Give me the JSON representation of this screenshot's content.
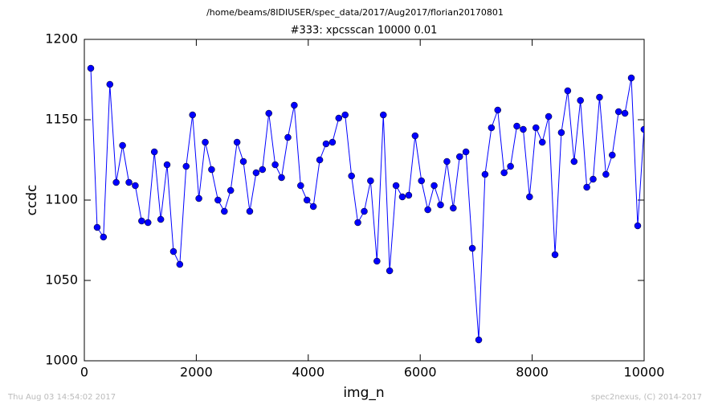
{
  "chart_data": {
    "type": "line",
    "suptitle": "/home/beams/8IDIUSER/spec_data/2017/Aug2017/florian20170801",
    "title": "#333: xpcsscan 10000 0.01",
    "xlabel": "img_n",
    "ylabel": "ccdc",
    "footer_left": "Thu Aug 03 14:54:02 2017",
    "footer_right": "spec2nexus, (C) 2014-2017",
    "x": [
      115,
      229,
      342,
      456,
      569,
      683,
      797,
      910,
      1024,
      1137,
      1251,
      1365,
      1478,
      1592,
      1705,
      1819,
      1933,
      2046,
      2160,
      2273,
      2387,
      2501,
      2614,
      2728,
      2841,
      2955,
      3069,
      3182,
      3296,
      3409,
      3523,
      3637,
      3750,
      3864,
      3977,
      4091,
      4205,
      4318,
      4432,
      4545,
      4659,
      4773,
      4886,
      5000,
      5113,
      5227,
      5341,
      5454,
      5568,
      5681,
      5795,
      5909,
      6022,
      6136,
      6249,
      6363,
      6477,
      6590,
      6704,
      6817,
      6931,
      7045,
      7158,
      7272,
      7385,
      7499,
      7613,
      7726,
      7840,
      7953,
      8067,
      8181,
      8294,
      8408,
      8521,
      8635,
      8749,
      8862,
      8976,
      9089,
      9203,
      9317,
      9430,
      9544,
      9657,
      9771,
      9885,
      9998
    ],
    "series": [
      {
        "color": "#0000ff",
        "values": [
          1182,
          1083,
          1077,
          1172,
          1111,
          1134,
          1111,
          1109,
          1087,
          1086,
          1130,
          1088,
          1122,
          1068,
          1060,
          1121,
          1153,
          1101,
          1136,
          1119,
          1100,
          1093,
          1106,
          1136,
          1124,
          1093,
          1117,
          1119,
          1154,
          1122,
          1114,
          1139,
          1159,
          1109,
          1100,
          1096,
          1125,
          1135,
          1136,
          1151,
          1153,
          1115,
          1086,
          1093,
          1112,
          1062,
          1153,
          1056,
          1109,
          1102,
          1103,
          1140,
          1112,
          1094,
          1109,
          1097,
          1124,
          1095,
          1127,
          1130,
          1070,
          1013,
          1116,
          1145,
          1156,
          1117,
          1121,
          1146,
          1144,
          1102,
          1145,
          1136,
          1152,
          1066,
          1142,
          1168,
          1124,
          1162,
          1108,
          1113,
          1164,
          1116,
          1128,
          1155,
          1154,
          1176,
          1084,
          1144
        ]
      }
    ],
    "xlim": [
      0,
      10000
    ],
    "xticks": [
      0,
      2000,
      4000,
      6000,
      8000,
      10000
    ],
    "ylim": [
      1000,
      1200
    ],
    "yticks": [
      1000,
      1050,
      1100,
      1150,
      1200
    ],
    "grid": false
  }
}
